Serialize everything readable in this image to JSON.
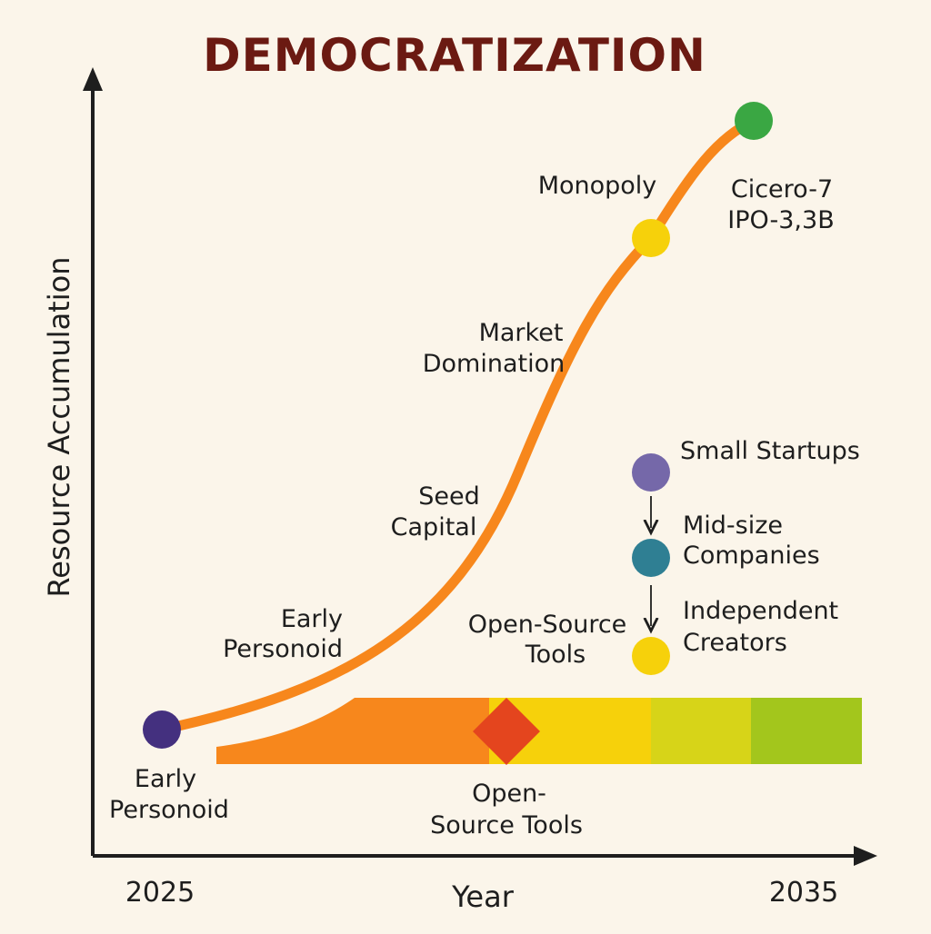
{
  "title": "DEMOCRATIZATION",
  "colors": {
    "title": "#6b1a12",
    "axis": "#1e1e1e",
    "curve": "#f7871c",
    "stage_early": "#44307f",
    "stage_monopoly": "#f6d10b",
    "stage_cicero": "#3aa743",
    "node_small_startups": "#7568a9",
    "node_mid_size": "#2f7f93",
    "node_independent": "#f6d10b",
    "band_orange": "#f7871c",
    "band_diamond": "#e4451e",
    "band_yellow": "#f6d10b",
    "band_lime": "#d7d418",
    "band_green": "#a3c61c"
  },
  "axes": {
    "x_title": "Year",
    "y_title": "Resource Accumulation",
    "x_start": "2025",
    "x_end": "2035"
  },
  "curve_labels": {
    "early": {
      "line1": "Early",
      "line2": "Personoid"
    },
    "seed": {
      "line1": "Seed",
      "line2": "Capital"
    },
    "market": {
      "line1": "Market",
      "line2": "Domination"
    },
    "monopoly": "Monopoly",
    "cicero": {
      "line1": "Cicero-7",
      "line2": "IPO-3,3B"
    }
  },
  "start_label": {
    "line1": "Early",
    "line2": "Personoid"
  },
  "open_source_mid": {
    "line1": "Open-Source",
    "line2": "Tools"
  },
  "open_source_band": {
    "line1": "Open-",
    "line2": "Source Tools"
  },
  "democratization_flow": [
    {
      "label_line1": "Small Startups",
      "label_line2": "",
      "color_key": "node_small_startups"
    },
    {
      "label_line1": "Mid-size",
      "label_line2": "Companies",
      "color_key": "node_mid_size"
    },
    {
      "label_line1": "Independent",
      "label_line2": "Creators",
      "color_key": "node_independent"
    }
  ]
}
